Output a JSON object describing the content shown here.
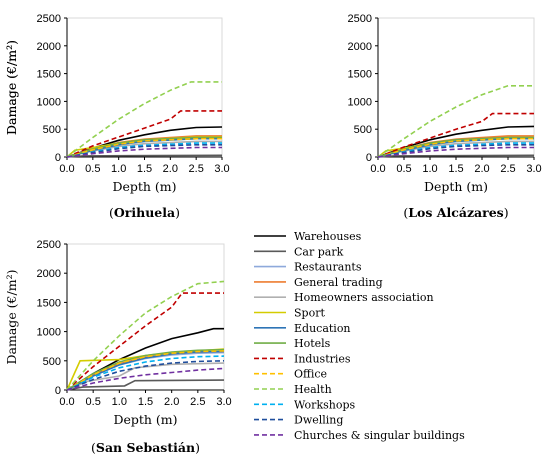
{
  "series_styles": [
    {
      "name": "Warehouses",
      "color": "#000000",
      "dash": "solid"
    },
    {
      "name": "Car park",
      "color": "#595959",
      "dash": "solid"
    },
    {
      "name": "Restaurants",
      "color": "#8ea9db",
      "dash": "solid"
    },
    {
      "name": "General trading",
      "color": "#ed7d31",
      "dash": "solid"
    },
    {
      "name": "Homeowners association",
      "color": "#b0b0b0",
      "dash": "solid"
    },
    {
      "name": "Sport",
      "color": "#d4cc00",
      "dash": "solid"
    },
    {
      "name": "Education",
      "color": "#2e75b6",
      "dash": "solid"
    },
    {
      "name": "Hotels",
      "color": "#70ad47",
      "dash": "solid"
    },
    {
      "name": "Industries",
      "color": "#c00000",
      "dash": "dashed"
    },
    {
      "name": "Office",
      "color": "#ffc000",
      "dash": "dashed"
    },
    {
      "name": "Health",
      "color": "#92d050",
      "dash": "dashed"
    },
    {
      "name": "Workshops",
      "color": "#00b0f0",
      "dash": "dashed"
    },
    {
      "name": "Dwelling",
      "color": "#1f4e9c",
      "dash": "dashed"
    },
    {
      "name": "Churches & singular buildings",
      "color": "#7030a0",
      "dash": "dashed"
    }
  ],
  "chart_data": [
    {
      "type": "line",
      "caption": {
        "open": "(",
        "name": "Orihuela",
        "close": ")"
      },
      "xlabel": "Depth (m)",
      "ylabel": "Damage (€/m²)",
      "xlim": [
        0,
        3
      ],
      "ylim": [
        0,
        2500
      ],
      "xticks": [
        "0.0",
        "0.5",
        "1.0",
        "1.5",
        "2.0",
        "2.5",
        "3.0"
      ],
      "yticks": [
        "0",
        "500",
        "1000",
        "1500",
        "2000",
        "2500"
      ],
      "series": [
        {
          "x": [
            0,
            0.5,
            1.0,
            1.5,
            2.0,
            2.5,
            3.0
          ],
          "y": [
            0,
            160,
            300,
            400,
            480,
            530,
            540
          ]
        },
        {
          "x": [
            0,
            0.3,
            3.0
          ],
          "y": [
            0,
            20,
            30
          ]
        },
        {
          "x": [
            0,
            0.5,
            1.0,
            1.5,
            2.5,
            3.0
          ],
          "y": [
            0,
            130,
            240,
            300,
            360,
            360
          ]
        },
        {
          "x": [
            0,
            0.5,
            1.0,
            1.5,
            2.5,
            3.0
          ],
          "y": [
            0,
            150,
            260,
            320,
            380,
            380
          ]
        },
        {
          "x": [
            0,
            0.5,
            1.0,
            1.5,
            2.5,
            3.0
          ],
          "y": [
            0,
            110,
            190,
            240,
            280,
            280
          ]
        },
        {
          "x": [
            0,
            0.15,
            0.5,
            1.0,
            1.5,
            2.5,
            3.0
          ],
          "y": [
            0,
            120,
            170,
            250,
            310,
            360,
            360
          ]
        },
        {
          "x": [
            0,
            0.5,
            1.0,
            1.5,
            2.5,
            3.0
          ],
          "y": [
            0,
            120,
            220,
            280,
            330,
            330
          ]
        },
        {
          "x": [
            0,
            0.5,
            1.0,
            1.5,
            2.5,
            3.0
          ],
          "y": [
            0,
            140,
            250,
            310,
            350,
            350
          ]
        },
        {
          "x": [
            0,
            0.5,
            1.0,
            1.5,
            2.0,
            2.2,
            3.0
          ],
          "y": [
            0,
            200,
            360,
            520,
            680,
            830,
            830
          ]
        },
        {
          "x": [
            0,
            0.5,
            1.0,
            1.5,
            2.5,
            3.0
          ],
          "y": [
            0,
            130,
            230,
            290,
            330,
            330
          ]
        },
        {
          "x": [
            0,
            0.5,
            1.0,
            1.5,
            2.0,
            2.4,
            3.0
          ],
          "y": [
            0,
            350,
            680,
            960,
            1200,
            1350,
            1350
          ]
        },
        {
          "x": [
            0,
            0.5,
            1.0,
            1.5,
            2.5,
            3.0
          ],
          "y": [
            0,
            90,
            170,
            210,
            250,
            250
          ]
        },
        {
          "x": [
            0,
            0.5,
            1.0,
            1.5,
            2.5,
            3.0
          ],
          "y": [
            0,
            80,
            150,
            190,
            220,
            220
          ]
        },
        {
          "x": [
            0,
            0.5,
            1.0,
            1.5,
            2.5,
            3.0
          ],
          "y": [
            0,
            60,
            110,
            140,
            170,
            170
          ]
        }
      ]
    },
    {
      "type": "line",
      "caption": {
        "open": "(",
        "name": "Los Alcázares",
        "close": ")"
      },
      "xlabel": "Depth (m)",
      "ylabel": "Damage (€/m²)",
      "xlim": [
        0,
        3
      ],
      "ylim": [
        0,
        2500
      ],
      "xticks": [
        "0.0",
        "0.5",
        "1.0",
        "1.5",
        "2.0",
        "2.5",
        "3.0"
      ],
      "yticks": [
        "0",
        "500",
        "1000",
        "1500",
        "2000",
        "2500"
      ],
      "series": [
        {
          "x": [
            0,
            0.5,
            1.0,
            1.5,
            2.0,
            2.5,
            3.0
          ],
          "y": [
            0,
            170,
            310,
            410,
            480,
            540,
            550
          ]
        },
        {
          "x": [
            0,
            0.3,
            3.0
          ],
          "y": [
            0,
            20,
            30
          ]
        },
        {
          "x": [
            0,
            0.5,
            1.0,
            1.5,
            2.5,
            3.0
          ],
          "y": [
            0,
            130,
            240,
            300,
            360,
            360
          ]
        },
        {
          "x": [
            0,
            0.5,
            1.0,
            1.5,
            2.5,
            3.0
          ],
          "y": [
            0,
            150,
            260,
            320,
            380,
            380
          ]
        },
        {
          "x": [
            0,
            0.5,
            1.0,
            1.5,
            2.5,
            3.0
          ],
          "y": [
            0,
            110,
            190,
            240,
            280,
            280
          ]
        },
        {
          "x": [
            0,
            0.15,
            0.5,
            1.0,
            1.5,
            2.5,
            3.0
          ],
          "y": [
            0,
            110,
            160,
            240,
            300,
            350,
            350
          ]
        },
        {
          "x": [
            0,
            0.5,
            1.0,
            1.5,
            2.5,
            3.0
          ],
          "y": [
            0,
            120,
            220,
            280,
            330,
            330
          ]
        },
        {
          "x": [
            0,
            0.5,
            1.0,
            1.5,
            2.5,
            3.0
          ],
          "y": [
            0,
            140,
            250,
            310,
            350,
            350
          ]
        },
        {
          "x": [
            0,
            0.5,
            1.0,
            1.5,
            2.0,
            2.2,
            3.0
          ],
          "y": [
            0,
            180,
            340,
            500,
            640,
            780,
            780
          ]
        },
        {
          "x": [
            0,
            0.5,
            1.0,
            1.5,
            2.5,
            3.0
          ],
          "y": [
            0,
            130,
            230,
            290,
            330,
            330
          ]
        },
        {
          "x": [
            0,
            0.5,
            1.0,
            1.5,
            2.0,
            2.5,
            3.0
          ],
          "y": [
            0,
            330,
            640,
            900,
            1120,
            1280,
            1280
          ]
        },
        {
          "x": [
            0,
            0.5,
            1.0,
            1.5,
            2.5,
            3.0
          ],
          "y": [
            0,
            90,
            170,
            210,
            250,
            250
          ]
        },
        {
          "x": [
            0,
            0.5,
            1.0,
            1.5,
            2.5,
            3.0
          ],
          "y": [
            0,
            80,
            150,
            190,
            220,
            220
          ]
        },
        {
          "x": [
            0,
            0.5,
            1.0,
            1.5,
            2.5,
            3.0
          ],
          "y": [
            0,
            60,
            110,
            140,
            170,
            170
          ]
        }
      ]
    },
    {
      "type": "line",
      "caption": {
        "open": "(",
        "name": "San Sebastián",
        "close": ")"
      },
      "xlabel": "Depth (m)",
      "ylabel": "Damage (€/m²)",
      "xlim": [
        0,
        3
      ],
      "ylim": [
        0,
        2500
      ],
      "xticks": [
        "0.0",
        "0.5",
        "1.0",
        "1.5",
        "2.0",
        "2.5",
        "3.0"
      ],
      "yticks": [
        "0",
        "500",
        "1000",
        "1500",
        "2000",
        "2500"
      ],
      "series": [
        {
          "x": [
            0,
            0.5,
            1.0,
            1.5,
            2.0,
            2.5,
            2.8,
            3.0
          ],
          "y": [
            0,
            280,
            520,
            720,
            880,
            980,
            1050,
            1050
          ]
        },
        {
          "x": [
            0,
            0.3,
            1.1,
            1.3,
            3.0
          ],
          "y": [
            0,
            50,
            70,
            160,
            170
          ]
        },
        {
          "x": [
            0,
            0.5,
            1.0,
            1.5,
            2.0,
            2.5,
            3.0
          ],
          "y": [
            0,
            250,
            430,
            540,
            600,
            630,
            640
          ]
        },
        {
          "x": [
            0,
            0.5,
            1.0,
            1.5,
            2.0,
            2.5,
            3.0
          ],
          "y": [
            0,
            260,
            450,
            560,
            620,
            650,
            660
          ]
        },
        {
          "x": [
            0,
            0.4,
            1.0,
            1.3,
            2.0,
            3.0
          ],
          "y": [
            0,
            150,
            240,
            380,
            440,
            460
          ]
        },
        {
          "x": [
            0,
            0.15,
            0.25,
            1.0,
            1.5,
            2.0,
            3.0
          ],
          "y": [
            0,
            300,
            500,
            520,
            590,
            640,
            700
          ]
        },
        {
          "x": [
            0,
            0.5,
            1.0,
            1.5,
            2.0,
            2.5,
            3.0
          ],
          "y": [
            0,
            240,
            430,
            550,
            620,
            650,
            660
          ]
        },
        {
          "x": [
            0,
            0.5,
            1.0,
            1.5,
            2.0,
            2.5,
            3.0
          ],
          "y": [
            0,
            280,
            480,
            590,
            650,
            680,
            690
          ]
        },
        {
          "x": [
            0,
            0.5,
            1.0,
            1.5,
            2.0,
            2.2,
            3.0
          ],
          "y": [
            0,
            400,
            750,
            1100,
            1420,
            1660,
            1660
          ]
        },
        {
          "x": [
            0,
            0.5,
            1.0,
            1.5,
            2.0,
            2.5,
            3.0
          ],
          "y": [
            0,
            260,
            460,
            570,
            630,
            660,
            670
          ]
        },
        {
          "x": [
            0,
            0.5,
            1.0,
            1.5,
            2.0,
            2.5,
            3.0
          ],
          "y": [
            0,
            500,
            930,
            1320,
            1600,
            1820,
            1860
          ]
        },
        {
          "x": [
            0,
            0.5,
            1.0,
            1.5,
            2.0,
            2.5,
            3.0
          ],
          "y": [
            0,
            220,
            380,
            480,
            540,
            570,
            580
          ]
        },
        {
          "x": [
            0,
            0.5,
            1.0,
            1.5,
            2.0,
            2.5,
            3.0
          ],
          "y": [
            0,
            180,
            320,
            410,
            460,
            490,
            500
          ]
        },
        {
          "x": [
            0,
            0.5,
            1.0,
            1.5,
            2.0,
            2.5,
            3.0
          ],
          "y": [
            0,
            120,
            200,
            260,
            300,
            340,
            370
          ]
        }
      ]
    }
  ]
}
